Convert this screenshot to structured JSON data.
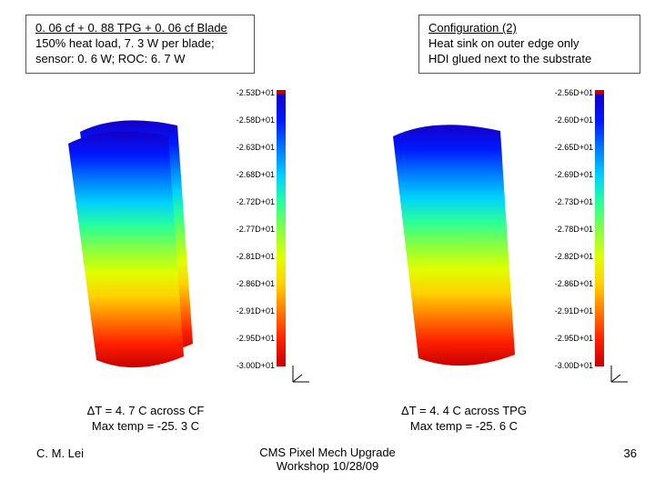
{
  "top_left_box": {
    "title": "0. 06 cf + 0. 88 TPG + 0. 06 cf Blade",
    "line2": "150% heat load, 7. 3 W per blade;",
    "line3": "sensor: 0. 6 W; ROC:  6. 7 W"
  },
  "top_right_box": {
    "title": "Configuration (2)",
    "line2": "Heat sink on outer edge only",
    "line3": "HDI glued next to the substrate"
  },
  "panel_left": {
    "tick_labels": [
      "-2.53D+01",
      "-2.58D+01",
      "-2.63D+01",
      "-2.68D+01",
      "-2.72D+01",
      "-2.77D+01",
      "-2.81D+01",
      "-2.86D+01",
      "-2.91D+01",
      "-2.95D+01",
      "-3.00D+01"
    ],
    "caption_line1": "ΔT = 4. 7 C across CF",
    "caption_line2": "Max temp = -25. 3 C"
  },
  "panel_right": {
    "tick_labels": [
      "-2.56D+01",
      "-2.60D+01",
      "-2.65D+01",
      "-2.69D+01",
      "-2.73D+01",
      "-2.78D+01",
      "-2.82D+01",
      "-2.86D+01",
      "-2.91D+01",
      "-2.95D+01",
      "-3.00D+01"
    ],
    "caption_line1": "ΔT = 4. 4 C across TPG",
    "caption_line2": "Max temp = -25. 6 C"
  },
  "footer": {
    "author": "C. M. Lei",
    "center_line1": "CMS Pixel Mech Upgrade",
    "center_line2": "Workshop 10/28/09",
    "page": "36"
  },
  "style": {
    "colorbar_gradient": "linear-gradient(to bottom,#1400c8,#0018ff,#0078ff,#00d0ff,#28ff9c,#88ff40,#e0ff00,#ffd000,#ff7800,#ff2000,#c80000)",
    "box_border_color": "#555555",
    "background": "#ffffff",
    "tick_font_size": 9,
    "body_font_size": 13
  }
}
